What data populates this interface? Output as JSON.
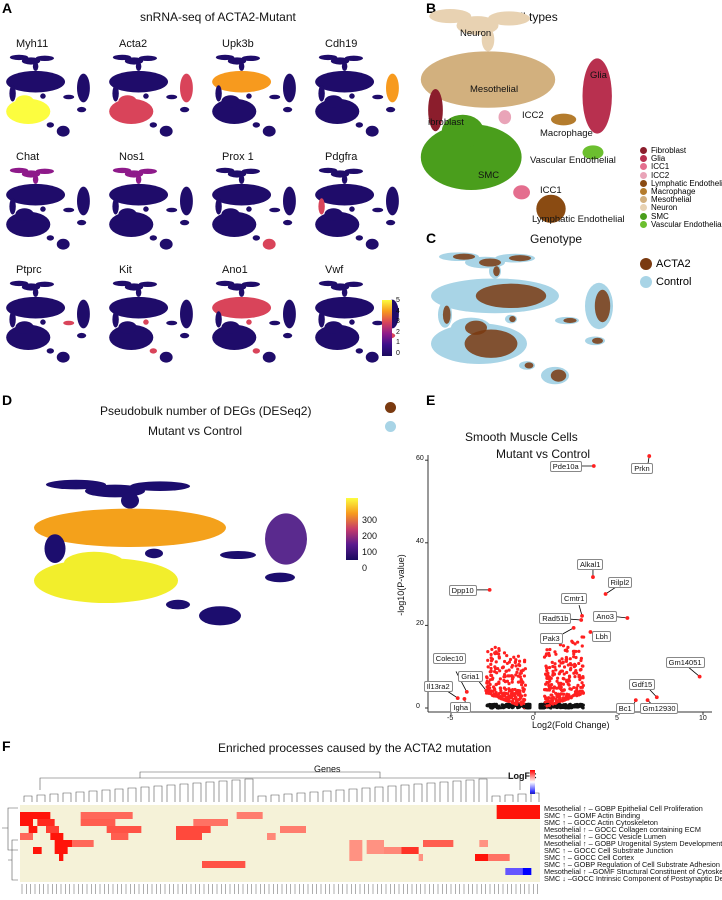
{
  "panels": {
    "A": "A",
    "B": "B",
    "C": "C",
    "D": "D",
    "E": "E",
    "F": "F"
  },
  "panelA": {
    "title": "snRNA-seq of ACTA2-Mutant",
    "genes": [
      {
        "name": "Myh11",
        "high": [
          "SMC"
        ],
        "level": 5
      },
      {
        "name": "Acta2",
        "high": [
          "SMC",
          "Glia"
        ],
        "level": 3
      },
      {
        "name": "Upk3b",
        "high": [
          "Mesothelial"
        ],
        "level": 4
      },
      {
        "name": "Cdh19",
        "high": [
          "Glia"
        ],
        "level": 4
      },
      {
        "name": "Chat",
        "high": [
          "Neuron"
        ],
        "level": 2
      },
      {
        "name": "Nos1",
        "high": [
          "Neuron"
        ],
        "level": 2
      },
      {
        "name": "Prox 1",
        "high": [
          "Lymphatic Endothelial"
        ],
        "level": 3
      },
      {
        "name": "Pdgfra",
        "high": [
          "Fibroblast"
        ],
        "level": 3
      },
      {
        "name": "Ptprc",
        "high": [
          "Macrophage"
        ],
        "level": 3
      },
      {
        "name": "Kit",
        "high": [
          "ICC1",
          "ICC2"
        ],
        "level": 3
      },
      {
        "name": "Ano1",
        "high": [
          "ICC1",
          "ICC2",
          "Mesothelial"
        ],
        "level": 3
      },
      {
        "name": "Vwf",
        "high": [
          "Vascular Endothelial"
        ],
        "level": 3
      }
    ],
    "colorbar": {
      "ticks": [
        "5",
        "4",
        "3",
        "2",
        "1",
        "0"
      ],
      "colors": [
        "#fcfd3f",
        "#f79a1e",
        "#d9445a",
        "#8e1a8a",
        "#3b0f8a",
        "#1a0a5e"
      ]
    }
  },
  "panelB": {
    "title": "Cell types",
    "clusters": [
      {
        "name": "Fibroblast",
        "color": "#8b1d2c",
        "label": "ibroblast"
      },
      {
        "name": "Glia",
        "color": "#b8304f",
        "label": "Glia"
      },
      {
        "name": "ICC1",
        "color": "#e46e8e",
        "label": "ICC1"
      },
      {
        "name": "ICC2",
        "color": "#e9a4b8",
        "label": "ICC2"
      },
      {
        "name": "Lymphatic Endothelial",
        "color": "#8a4b12",
        "label": "Lymphatic Endothelial"
      },
      {
        "name": "Macrophage",
        "color": "#b47c2d",
        "label": "Macrophage"
      },
      {
        "name": "Mesothelial",
        "color": "#d2b07e",
        "label": "Mesothelial"
      },
      {
        "name": "Neuron",
        "color": "#e8d2b2",
        "label": "Neuron"
      },
      {
        "name": "SMC",
        "color": "#4a9e1c",
        "label": "SMC"
      },
      {
        "name": "Vascular Endothelial",
        "color": "#6cbf2f",
        "label": "Vascular Endothelial"
      }
    ]
  },
  "panelC": {
    "title": "Genotype",
    "legend": [
      {
        "name": "ACTA2",
        "color": "#7a3a10"
      },
      {
        "name": "Control",
        "color": "#a8d4e6"
      }
    ]
  },
  "panelD": {
    "title": "Pseudobulk number of DEGs (DESeq2)",
    "subtitle": "Mutant vs Control",
    "cluster_colors": {
      "Mesothelial": "#f4a11b",
      "SMC": "#f2ee2c",
      "Glia": "#5a2a8e",
      "other": "#1c0d6e"
    },
    "colorbar": {
      "ticks": [
        "300",
        "200",
        "100",
        "0"
      ]
    }
  },
  "chart_data": {
    "type": "scatter",
    "title": "Smooth Muscle Cells",
    "subtitle": "Mutant vs Control",
    "xlabel": "Log2(Fold Change)",
    "ylabel": "-log10(P-value)",
    "xlim": [
      -6,
      10.5
    ],
    "ylim": [
      -2,
      62
    ],
    "xticks": [
      "-5",
      "0",
      "5",
      "10"
    ],
    "yticks": [
      "0",
      "20",
      "40",
      "60"
    ],
    "significant_color": "#ff2020",
    "nonsignificant_color": "#111111",
    "labeled_points": [
      {
        "gene": "Pde10a",
        "x": 3.5,
        "y": 58.6
      },
      {
        "gene": "Prkn",
        "x": 6.8,
        "y": 61
      },
      {
        "gene": "Alkal1",
        "x": 3.45,
        "y": 31.7
      },
      {
        "gene": "Rilpl2",
        "x": 4.2,
        "y": 27.6
      },
      {
        "gene": "Dpp10",
        "x": -2.7,
        "y": 28.6
      },
      {
        "gene": "Cmtr1",
        "x": 2.8,
        "y": 22.3
      },
      {
        "gene": "Rad51b",
        "x": 2.75,
        "y": 21.3
      },
      {
        "gene": "Ano3",
        "x": 5.5,
        "y": 21.8
      },
      {
        "gene": "Pak3",
        "x": 2.3,
        "y": 19.4
      },
      {
        "gene": "Lbh",
        "x": 3.3,
        "y": 18.4
      },
      {
        "gene": "Colec10",
        "x": -4.06,
        "y": 3.9
      },
      {
        "gene": "Il13ra2",
        "x": -4.6,
        "y": 2.4
      },
      {
        "gene": "Igha",
        "x": -4.2,
        "y": 2.2
      },
      {
        "gene": "Gria1",
        "x": -2.9,
        "y": 4.2
      },
      {
        "gene": "Gm14051",
        "x": 9.8,
        "y": 7.6
      },
      {
        "gene": "Gdf15",
        "x": 7.25,
        "y": 2.6
      },
      {
        "gene": "Bc1",
        "x": 6.0,
        "y": 1.9
      },
      {
        "gene": "Gm12930",
        "x": 6.7,
        "y": 1.9
      }
    ]
  },
  "panelF": {
    "title": "Enriched processes caused by the ACTA2 mutation",
    "genes_label": "Genes",
    "legend_title": "LogFC",
    "legend_ticks": [
      "2",
      "1",
      "0",
      "-1",
      "-2"
    ],
    "background": "#f5f2d8",
    "rows": [
      {
        "label": "Mesothelial ↑ – GOBP Epithelial Cell Proliferation",
        "runs": [
          [
            110,
            120,
            2
          ]
        ]
      },
      {
        "label": "SMC ↑ – GOMF Actin Binding",
        "runs": [
          [
            0,
            7,
            2
          ],
          [
            14,
            26,
            1.2
          ],
          [
            50,
            56,
            1
          ],
          [
            110,
            120,
            2
          ]
        ]
      },
      {
        "label": "SMC ↑ – GOCC Actin Cytoskeleton",
        "runs": [
          [
            0,
            3,
            2
          ],
          [
            4,
            8,
            1.8
          ],
          [
            14,
            22,
            1.3
          ],
          [
            40,
            48,
            1.1
          ]
        ]
      },
      {
        "label": "Mesothelial ↑ – GOCC Collagen containing ECM",
        "runs": [
          [
            2,
            4,
            2
          ],
          [
            6,
            9,
            1.6
          ],
          [
            20,
            28,
            1.4
          ],
          [
            36,
            44,
            1.5
          ],
          [
            60,
            66,
            1.0
          ]
        ]
      },
      {
        "label": "Mesothelial ↑ – GOCC Vesicle Lumen",
        "runs": [
          [
            0,
            3,
            1.2
          ],
          [
            7,
            10,
            2
          ],
          [
            21,
            25,
            1.3
          ],
          [
            36,
            42,
            1.5
          ],
          [
            57,
            59,
            0.9
          ]
        ]
      },
      {
        "label": "Mesothelial ↑ – GOBP Urogenital System Development",
        "runs": [
          [
            8,
            12,
            2
          ],
          [
            12,
            17,
            1.2
          ],
          [
            76,
            79,
            0.8
          ],
          [
            80,
            84,
            0.8
          ],
          [
            93,
            100,
            1.3
          ],
          [
            106,
            108,
            0.8
          ]
        ]
      },
      {
        "label": "SMC ↑ – GOCC Cell Substrate Junction",
        "runs": [
          [
            3,
            5,
            2
          ],
          [
            8,
            11,
            2
          ],
          [
            76,
            79,
            0.8
          ],
          [
            80,
            84,
            0.8
          ],
          [
            84,
            88,
            0.9
          ],
          [
            88,
            92,
            1.7
          ]
        ]
      },
      {
        "label": "SMC ↑ – GOCC Cell Cortex",
        "runs": [
          [
            9,
            10,
            2
          ],
          [
            76,
            79,
            0.8
          ],
          [
            92,
            93,
            0.8
          ],
          [
            105,
            108,
            2
          ],
          [
            108,
            113,
            1.1
          ]
        ]
      },
      {
        "label": "SMC ↑ – GOBP Regulation of Cell Substrate Adhesion",
        "runs": [
          [
            42,
            52,
            1.4
          ]
        ]
      },
      {
        "label": "Mesothelial ↑ –GOMF Structural Constituent of Cytoskeleton",
        "runs": [
          [
            112,
            116,
            -1
          ],
          [
            116,
            118,
            -2
          ]
        ]
      },
      {
        "label": "SMC ↓ –GOCC Intrinsic Component of Postsynaptic Density",
        "runs": []
      }
    ]
  }
}
